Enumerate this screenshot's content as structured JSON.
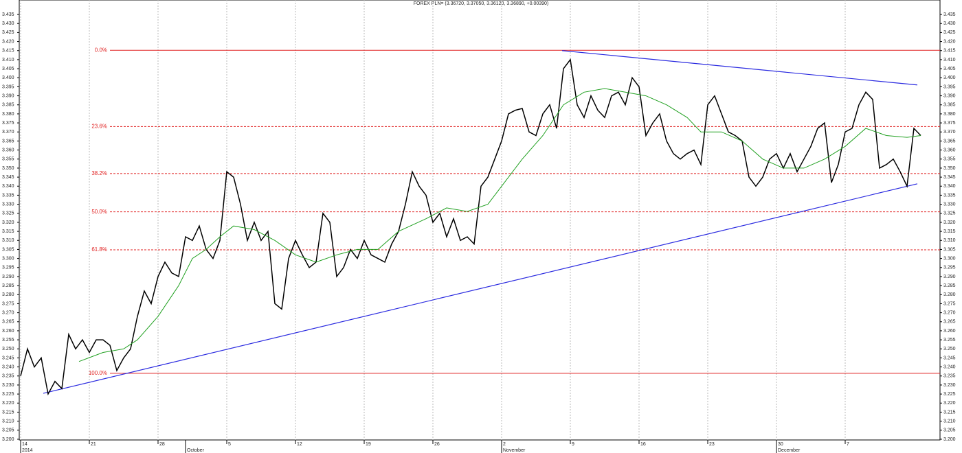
{
  "chart_data": {
    "type": "line",
    "title": "FOREX PLN= (3.36720, 3.37050, 3.36120, 3.36890, +0.00390)",
    "xlim": [
      -0.2,
      133.8
    ],
    "ylim": [
      3.1996,
      3.443
    ],
    "xticks": [
      {
        "value": 0,
        "label": "14"
      },
      {
        "value": 10,
        "label": "21"
      },
      {
        "value": 20,
        "label": "28"
      },
      {
        "value": 30,
        "label": "5"
      },
      {
        "value": 40,
        "label": "12"
      },
      {
        "value": 50,
        "label": "19"
      },
      {
        "value": 60,
        "label": "26"
      },
      {
        "value": 70,
        "label": "2"
      },
      {
        "value": 80,
        "label": "9"
      },
      {
        "value": 90,
        "label": "16"
      },
      {
        "value": 100,
        "label": "23"
      },
      {
        "value": 110,
        "label": "30"
      },
      {
        "value": 120,
        "label": "7"
      }
    ],
    "month_labels": [
      {
        "value": 0,
        "label": "2014"
      },
      {
        "value": 24,
        "label": "October"
      },
      {
        "value": 70,
        "label": "November"
      },
      {
        "value": 110,
        "label": "December"
      }
    ],
    "yticks": [
      {
        "value": 3.2,
        "label": "3.200"
      },
      3.205,
      {
        "value": 3.21,
        "label": "3.210"
      },
      3.215,
      {
        "value": 3.22,
        "label": "3.220"
      },
      3.225,
      {
        "value": 3.23,
        "label": "3.230"
      },
      3.235,
      {
        "value": 3.24,
        "label": "3.240"
      },
      3.245,
      {
        "value": 3.25,
        "label": "3.250"
      },
      3.255,
      {
        "value": 3.26,
        "label": "3.260"
      },
      3.265,
      {
        "value": 3.27,
        "label": "3.270"
      },
      3.275,
      {
        "value": 3.28,
        "label": "3.280"
      },
      3.285,
      {
        "value": 3.29,
        "label": "3.290"
      },
      3.295,
      {
        "value": 3.3,
        "label": "3.300"
      },
      3.305,
      {
        "value": 3.31,
        "label": "3.310"
      },
      3.315,
      {
        "value": 3.32,
        "label": "3.320"
      },
      3.325,
      {
        "value": 3.33,
        "label": "3.330"
      },
      3.335,
      {
        "value": 3.34,
        "label": "3.340"
      },
      3.345,
      {
        "value": 3.35,
        "label": "3.350"
      },
      3.355,
      {
        "value": 3.36,
        "label": "3.360"
      },
      3.365,
      {
        "value": 3.37,
        "label": "3.370"
      },
      3.375,
      {
        "value": 3.38,
        "label": "3.380"
      },
      3.385,
      {
        "value": 3.39,
        "label": "3.390"
      },
      3.395,
      {
        "value": 3.4,
        "label": "3.400"
      },
      3.405,
      {
        "value": 3.41,
        "label": "3.410"
      },
      3.415,
      {
        "value": 3.42,
        "label": "3.420"
      },
      3.425,
      {
        "value": 3.43,
        "label": "3.430"
      },
      3.435
    ],
    "series": [
      {
        "color": "#000000",
        "x": [
          0,
          1,
          2,
          3,
          4,
          5,
          6,
          7,
          8,
          9,
          10,
          11,
          12,
          13,
          14,
          15,
          16,
          17,
          18,
          19,
          20,
          21,
          22,
          23,
          24,
          25,
          26,
          27,
          28,
          29,
          30,
          31,
          32,
          33,
          34,
          35,
          36,
          37,
          38,
          39,
          40,
          41,
          42,
          43,
          44,
          45,
          46,
          47,
          48,
          49,
          50,
          51,
          52,
          53,
          54,
          55,
          56,
          57,
          58,
          59,
          60,
          61,
          62,
          63,
          64,
          65,
          66,
          67,
          68,
          69,
          70,
          71,
          72,
          73,
          74,
          75,
          76,
          77,
          78,
          79,
          80,
          81,
          82,
          83,
          84,
          85,
          86,
          87,
          88,
          89,
          90,
          91,
          92,
          93,
          94,
          95,
          96,
          97,
          98,
          99,
          100,
          101,
          102,
          103,
          104,
          105,
          106,
          107,
          108,
          109,
          110,
          111,
          112,
          113,
          114,
          115,
          116,
          117,
          118,
          119,
          120,
          121,
          122,
          123,
          124,
          125,
          126,
          127,
          128,
          129,
          130,
          131
        ],
        "values": [
          3.235,
          3.25,
          3.24,
          3.245,
          3.225,
          3.232,
          3.228,
          3.258,
          3.25,
          3.255,
          3.248,
          3.255,
          3.255,
          3.252,
          3.238,
          3.245,
          3.25,
          3.268,
          3.282,
          3.275,
          3.29,
          3.298,
          3.292,
          3.29,
          3.312,
          3.31,
          3.318,
          3.305,
          3.3,
          3.31,
          3.348,
          3.345,
          3.33,
          3.31,
          3.32,
          3.31,
          3.315,
          3.275,
          3.272,
          3.3,
          3.31,
          3.302,
          3.295,
          3.298,
          3.325,
          3.32,
          3.29,
          3.295,
          3.305,
          3.3,
          3.31,
          3.302,
          3.3,
          3.298,
          3.308,
          3.315,
          3.33,
          3.348,
          3.34,
          3.335,
          3.32,
          3.325,
          3.312,
          3.322,
          3.31,
          3.312,
          3.308,
          3.34,
          3.345,
          3.355,
          3.365,
          3.38,
          3.382,
          3.383,
          3.37,
          3.368,
          3.38,
          3.385,
          3.372,
          3.405,
          3.41,
          3.385,
          3.378,
          3.39,
          3.382,
          3.378,
          3.39,
          3.392,
          3.385,
          3.4,
          3.395,
          3.368,
          3.375,
          3.38,
          3.365,
          3.358,
          3.355,
          3.358,
          3.36,
          3.352,
          3.385,
          3.39,
          3.38,
          3.37,
          3.368,
          3.365,
          3.345,
          3.34,
          3.345,
          3.355,
          3.358,
          3.35,
          3.358,
          3.348,
          3.355,
          3.362,
          3.372,
          3.375,
          3.342,
          3.352,
          3.37,
          3.372,
          3.385,
          3.392,
          3.388,
          3.35,
          3.352,
          3.355,
          3.348,
          3.34,
          3.372,
          3.368
        ]
      },
      {
        "color": "#20a020",
        "x": [
          8.5,
          12,
          15,
          17,
          20,
          23,
          25,
          27,
          29,
          31,
          34,
          37,
          40,
          43,
          46,
          49,
          52,
          55,
          59,
          62,
          65,
          68,
          70,
          73,
          76,
          79,
          82,
          85,
          88,
          91,
          94,
          97,
          99,
          102,
          105,
          108,
          111,
          114,
          117,
          120,
          123,
          126,
          129,
          131
        ],
        "values": [
          3.243,
          3.248,
          3.25,
          3.255,
          3.268,
          3.285,
          3.3,
          3.305,
          3.312,
          3.318,
          3.316,
          3.31,
          3.302,
          3.298,
          3.302,
          3.305,
          3.305,
          3.315,
          3.322,
          3.328,
          3.326,
          3.33,
          3.34,
          3.355,
          3.368,
          3.385,
          3.392,
          3.394,
          3.392,
          3.39,
          3.385,
          3.378,
          3.37,
          3.37,
          3.365,
          3.355,
          3.35,
          3.35,
          3.355,
          3.362,
          3.372,
          3.368,
          3.367,
          3.368
        ]
      }
    ],
    "fib_levels": [
      {
        "label": "0.0%",
        "value": 3.4152,
        "style": "solid"
      },
      {
        "label": "23.6%",
        "value": 3.373,
        "style": "dashed"
      },
      {
        "label": "38.2%",
        "value": 3.347,
        "style": "dashed"
      },
      {
        "label": "50.0%",
        "value": 3.3258,
        "style": "dashed"
      },
      {
        "label": "61.8%",
        "value": 3.3048,
        "style": "dashed"
      },
      {
        "label": "100.0%",
        "value": 3.2365,
        "style": "solid"
      }
    ],
    "fib_color": "#e02020",
    "trendlines": [
      {
        "x": [
          3.3,
          130.5
        ],
        "y": [
          3.2254,
          3.3413
        ],
        "color": "#2a2ae0"
      },
      {
        "x": [
          78.8,
          130.5
        ],
        "y": [
          3.415,
          3.396
        ],
        "color": "#2a2ae0"
      }
    ]
  }
}
